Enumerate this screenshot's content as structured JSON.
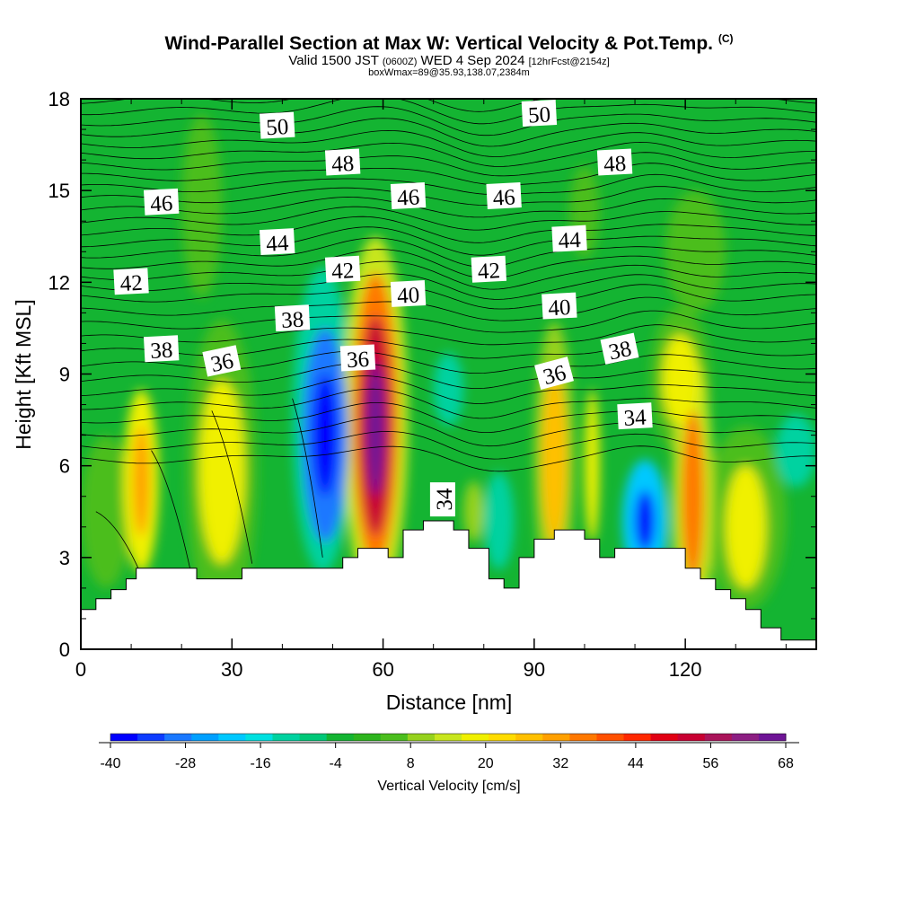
{
  "header": {
    "title_main": "Wind-Parallel Section at Max W: Vertical Velocity & Pot.Temp.",
    "title_mark": "(C)",
    "valid_prefix": "Valid 1500 JST",
    "valid_utc": "(0600Z)",
    "valid_date": "WED 4 Sep 2024",
    "forecast": "[12hrFcst@2154z]",
    "box_info": "boxWmax=89@35.93,138.07,2384m"
  },
  "chart_data": {
    "type": "heatmap",
    "xlabel": "Distance [nm]",
    "ylabel": "Height [Kft MSL]",
    "xlim": [
      0,
      146
    ],
    "ylim": [
      0,
      18
    ],
    "x_ticks": [
      "0",
      "30",
      "60",
      "90",
      "120"
    ],
    "y_ticks": [
      "0",
      "3",
      "6",
      "9",
      "12",
      "15",
      "18"
    ],
    "colorbar": {
      "label": "Vertical Velocity [cm/s]",
      "ticks": [
        "-40",
        "-28",
        "-16",
        "-4",
        "8",
        "20",
        "32",
        "44",
        "56",
        "68"
      ],
      "range": [
        -40,
        68
      ],
      "colors": [
        "#0000ff",
        "#0d3cff",
        "#1a78ff",
        "#00a0ff",
        "#00c8ff",
        "#00e0e0",
        "#00d2a0",
        "#00c878",
        "#14b432",
        "#2db41e",
        "#4bbe1e",
        "#96d21e",
        "#c8e61e",
        "#f0f000",
        "#ffdc00",
        "#ffc000",
        "#ffa000",
        "#ff7800",
        "#ff5000",
        "#ff2800",
        "#e10014",
        "#c80032",
        "#aa145a",
        "#8c1e82",
        "#6e1496"
      ]
    },
    "background_w": -4,
    "w_cells": [
      {
        "x": 48.5,
        "y": 7,
        "rx": 4.5,
        "ry": 3.5,
        "w": -30
      },
      {
        "x": 48.5,
        "y": 7,
        "rx": 2.5,
        "ry": 2,
        "w": -40
      },
      {
        "x": 48,
        "y": 7.5,
        "rx": 6,
        "ry": 5,
        "w": -14
      },
      {
        "x": 58.5,
        "y": 7.5,
        "rx": 4.5,
        "ry": 4.8,
        "w": 36
      },
      {
        "x": 58.5,
        "y": 7.3,
        "rx": 3.3,
        "ry": 3.6,
        "w": 52
      },
      {
        "x": 58.5,
        "y": 7.2,
        "rx": 1.8,
        "ry": 2.2,
        "w": 68
      },
      {
        "x": 58.5,
        "y": 7.5,
        "rx": 6.5,
        "ry": 6,
        "w": 14
      },
      {
        "x": 12,
        "y": 5.5,
        "rx": 3.5,
        "ry": 3,
        "w": 18
      },
      {
        "x": 12,
        "y": 5.5,
        "rx": 1.6,
        "ry": 1.8,
        "w": 30
      },
      {
        "x": 28,
        "y": 5.8,
        "rx": 4.5,
        "ry": 3,
        "w": 18
      },
      {
        "x": 28,
        "y": 5.8,
        "rx": 7,
        "ry": 5,
        "w": 6
      },
      {
        "x": 94,
        "y": 6.2,
        "rx": 2.5,
        "ry": 2.8,
        "w": 26
      },
      {
        "x": 94,
        "y": 6.2,
        "rx": 4,
        "ry": 4.5,
        "w": 10
      },
      {
        "x": 101.5,
        "y": 6,
        "rx": 1.5,
        "ry": 2.5,
        "w": 20
      },
      {
        "x": 112,
        "y": 4.2,
        "rx": 4.5,
        "ry": 2,
        "w": -22
      },
      {
        "x": 112,
        "y": 4.2,
        "rx": 2,
        "ry": 1,
        "w": -36
      },
      {
        "x": 121.5,
        "y": 5,
        "rx": 2.2,
        "ry": 2.8,
        "w": 34
      },
      {
        "x": 121.5,
        "y": 5,
        "rx": 4,
        "ry": 4.5,
        "w": 16
      },
      {
        "x": 119,
        "y": 8.8,
        "rx": 3.5,
        "ry": 1.5,
        "w": 18
      },
      {
        "x": 119,
        "y": 8.8,
        "rx": 6,
        "ry": 2.4,
        "w": 6
      },
      {
        "x": 132,
        "y": 4,
        "rx": 4,
        "ry": 2,
        "w": 18
      },
      {
        "x": 132,
        "y": 4.3,
        "rx": 8,
        "ry": 3,
        "w": 6
      },
      {
        "x": 5,
        "y": 4.5,
        "rx": 5,
        "ry": 2.5,
        "w": 6
      },
      {
        "x": 73,
        "y": 8.5,
        "rx": 3,
        "ry": 1.2,
        "w": -14
      },
      {
        "x": 83,
        "y": 4.2,
        "rx": 3,
        "ry": 1.6,
        "w": -14
      },
      {
        "x": 78,
        "y": 4.5,
        "rx": 2,
        "ry": 1,
        "w": 8
      },
      {
        "x": 142,
        "y": 6.5,
        "rx": 4,
        "ry": 1.2,
        "w": -14
      },
      {
        "x": 24,
        "y": 14.5,
        "rx": 4,
        "ry": 3,
        "w": 6
      },
      {
        "x": 100,
        "y": 14.3,
        "rx": 3,
        "ry": 1.5,
        "w": 6
      },
      {
        "x": 122,
        "y": 13,
        "rx": 6,
        "ry": 2,
        "w": 6
      }
    ],
    "terrain_kft": [
      [
        0,
        1.3
      ],
      [
        3,
        1.3
      ],
      [
        3,
        1.65
      ],
      [
        6,
        1.65
      ],
      [
        6,
        1.95
      ],
      [
        9,
        1.95
      ],
      [
        9,
        2.3
      ],
      [
        11,
        2.3
      ],
      [
        11,
        2.65
      ],
      [
        23,
        2.65
      ],
      [
        23,
        2.3
      ],
      [
        32,
        2.3
      ],
      [
        32,
        2.65
      ],
      [
        52,
        2.65
      ],
      [
        52,
        3
      ],
      [
        55,
        3
      ],
      [
        55,
        3.3
      ],
      [
        61,
        3.3
      ],
      [
        61,
        3
      ],
      [
        64,
        3
      ],
      [
        64,
        3.9
      ],
      [
        68,
        3.9
      ],
      [
        68,
        4.2
      ],
      [
        74,
        4.2
      ],
      [
        74,
        3.9
      ],
      [
        77,
        3.9
      ],
      [
        77,
        3.3
      ],
      [
        81,
        3.3
      ],
      [
        81,
        2.3
      ],
      [
        84,
        2.3
      ],
      [
        84,
        2
      ],
      [
        87,
        2
      ],
      [
        87,
        3
      ],
      [
        90,
        3
      ],
      [
        90,
        3.6
      ],
      [
        94,
        3.6
      ],
      [
        94,
        3.9
      ],
      [
        100,
        3.9
      ],
      [
        100,
        3.6
      ],
      [
        103,
        3.6
      ],
      [
        103,
        3
      ],
      [
        106,
        3
      ],
      [
        106,
        3.3
      ],
      [
        120,
        3.3
      ],
      [
        120,
        2.65
      ],
      [
        123,
        2.65
      ],
      [
        123,
        2.3
      ],
      [
        126,
        2.3
      ],
      [
        126,
        1.95
      ],
      [
        129,
        1.95
      ],
      [
        129,
        1.65
      ],
      [
        132,
        1.65
      ],
      [
        132,
        1.3
      ],
      [
        135,
        1.3
      ],
      [
        135,
        0.7
      ],
      [
        139,
        0.7
      ],
      [
        139,
        0.3
      ],
      [
        146,
        0.3
      ]
    ],
    "isentropes_K": [
      {
        "label": "34",
        "positions": [
          [
            72,
            4.9
          ],
          [
            110,
            7.6
          ]
        ]
      },
      {
        "label": "36",
        "positions": [
          [
            28,
            9.4
          ],
          [
            55,
            9.5
          ],
          [
            94,
            9
          ]
        ]
      },
      {
        "label": "38",
        "positions": [
          [
            16,
            9.8
          ],
          [
            42,
            10.8
          ],
          [
            107,
            9.8
          ]
        ]
      },
      {
        "label": "40",
        "positions": [
          [
            65,
            11.6
          ],
          [
            95,
            11.2
          ]
        ]
      },
      {
        "label": "42",
        "positions": [
          [
            10,
            12
          ],
          [
            52,
            12.4
          ],
          [
            81,
            12.4
          ]
        ]
      },
      {
        "label": "44",
        "positions": [
          [
            39,
            13.3
          ],
          [
            97,
            13.4
          ]
        ]
      },
      {
        "label": "46",
        "positions": [
          [
            16,
            14.6
          ],
          [
            65,
            14.8
          ],
          [
            84,
            14.8
          ]
        ]
      },
      {
        "label": "48",
        "positions": [
          [
            52,
            15.9
          ],
          [
            106,
            15.9
          ]
        ]
      },
      {
        "label": "50",
        "positions": [
          [
            39,
            17.1
          ],
          [
            91,
            17.5
          ]
        ]
      }
    ]
  }
}
